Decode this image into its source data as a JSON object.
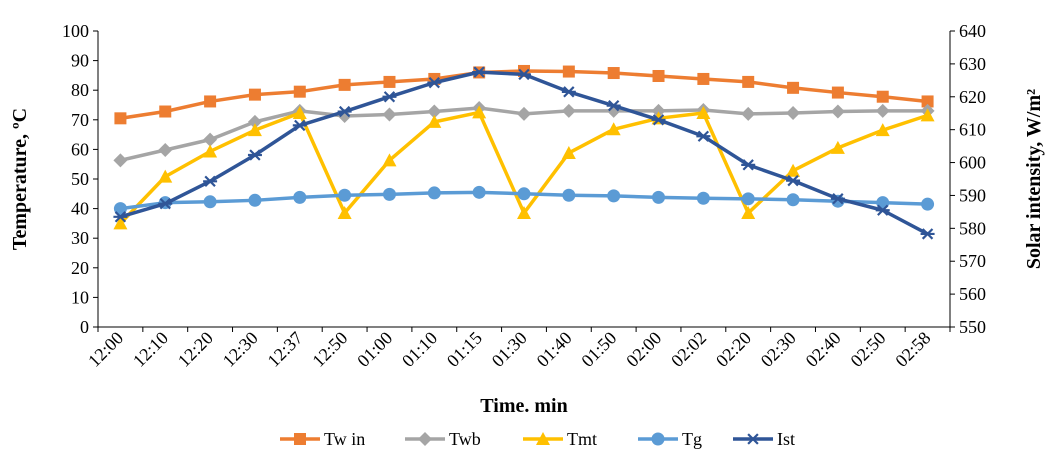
{
  "chart_data": {
    "type": "line",
    "xlabel": "Time. min",
    "ylabel_left": "Temperature, ºC",
    "ylabel_right": "Solar intensity, W/m²",
    "categories": [
      "12:00",
      "12:10",
      "12:20",
      "12:30",
      "12:37",
      "12:50",
      "01:00",
      "01:10",
      "01:15",
      "01:30",
      "01:40",
      "01:50",
      "02:00",
      "02:02",
      "02:20",
      "02:30",
      "02:40",
      "02:50",
      "02:58"
    ],
    "ylim_left": [
      0,
      100
    ],
    "yticks_left": [
      "0",
      "10",
      "20",
      "30",
      "40",
      "50",
      "60",
      "70",
      "80",
      "90",
      "100"
    ],
    "ylim_right": [
      550,
      640
    ],
    "yticks_right": [
      "550",
      "560",
      "570",
      "580",
      "590",
      "600",
      "610",
      "620",
      "630",
      "640"
    ],
    "grid": false,
    "legend_position": "bottom",
    "series": [
      {
        "name": "Tw in",
        "axis": "left",
        "color": "#ED7D31",
        "marker": "square",
        "values": [
          70.5,
          72.8,
          76.2,
          78.5,
          79.5,
          81.8,
          82.8,
          83.8,
          86.0,
          86.5,
          86.3,
          85.8,
          84.8,
          83.8,
          82.8,
          80.8,
          79.2,
          77.8,
          76.2
        ]
      },
      {
        "name": "Twb",
        "axis": "left",
        "color": "#A5A5A5",
        "marker": "diamond",
        "values": [
          56.3,
          59.8,
          63.3,
          69.3,
          73.0,
          71.3,
          71.8,
          72.8,
          74.0,
          72.0,
          73.0,
          73.0,
          73.0,
          73.3,
          72.0,
          72.3,
          72.8,
          73.0,
          73.0
        ]
      },
      {
        "name": "Tmt",
        "axis": "left",
        "color": "#FFC000",
        "marker": "triangle",
        "values": [
          35.0,
          50.8,
          59.3,
          66.5,
          72.3,
          38.5,
          56.3,
          69.3,
          72.5,
          38.5,
          58.8,
          66.8,
          70.5,
          72.3,
          38.5,
          52.8,
          60.5,
          66.5,
          71.5
        ]
      },
      {
        "name": "Tg",
        "axis": "left",
        "color": "#5B9BD5",
        "marker": "circle",
        "values": [
          40.0,
          42.0,
          42.3,
          42.8,
          43.8,
          44.5,
          44.8,
          45.3,
          45.5,
          45.0,
          44.5,
          44.3,
          43.8,
          43.5,
          43.3,
          43.0,
          42.5,
          42.0,
          41.5
        ]
      },
      {
        "name": "Ist",
        "axis": "right",
        "color": "#2F5597",
        "marker": "star",
        "values": [
          583.5,
          587.5,
          594.3,
          602.3,
          611.3,
          615.5,
          620.0,
          624.3,
          627.5,
          626.8,
          621.5,
          617.3,
          613.0,
          608.0,
          599.3,
          594.5,
          589.0,
          585.5,
          578.3
        ]
      }
    ]
  }
}
